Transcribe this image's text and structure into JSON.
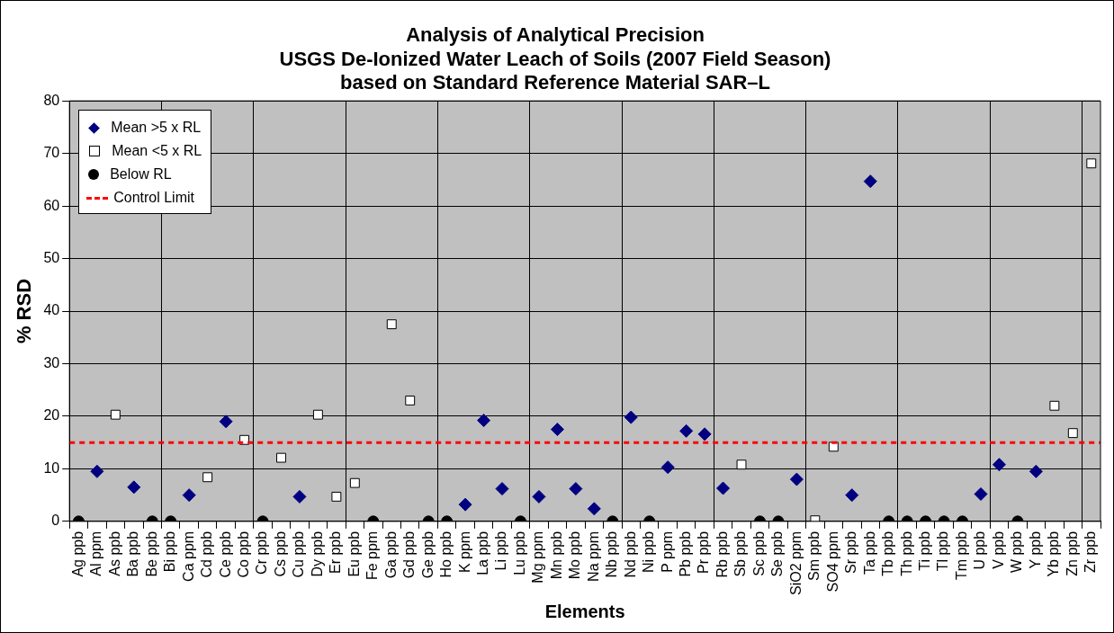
{
  "chart_data": {
    "type": "scatter",
    "title": "Analysis of Analytical Precision\nUSGS De-Ionized Water Leach of Soils (2007 Field Season)\nbased on Standard Reference Material SAR–L",
    "xlabel": "Elements",
    "ylabel": "% RSD",
    "categories": [
      "Ag ppb",
      "Al ppm",
      "As ppb",
      "Ba ppb",
      "Be ppb",
      "Bi ppb",
      "Ca ppm",
      "Cd ppb",
      "Ce ppb",
      "Co ppb",
      "Cr ppb",
      "Cs ppb",
      "Cu ppb",
      "Dy ppb",
      "Er ppb",
      "Eu ppb",
      "Fe ppm",
      "Ga ppb",
      "Gd ppb",
      "Ge ppb",
      "Ho ppb",
      "K ppm",
      "La ppb",
      "Li ppb",
      "Lu ppb",
      "Mg ppm",
      "Mn ppb",
      "Mo ppb",
      "Na ppm",
      "Nb ppb",
      "Nd ppb",
      "Ni ppb",
      "P ppm",
      "Pb ppb",
      "Pr ppb",
      "Rb ppb",
      "Sb ppb",
      "Sc ppb",
      "Se ppb",
      "SiO2 ppm",
      "Sm ppb",
      "SO4 ppm",
      "Sr ppb",
      "Ta ppb",
      "Tb ppb",
      "Th ppb",
      "Ti ppb",
      "Tl ppb",
      "Tm ppb",
      "U ppb",
      "V ppb",
      "W ppb",
      "Y ppb",
      "Yb ppb",
      "Zn ppb",
      "Zr ppb"
    ],
    "series": [
      {
        "name": "Mean >5 x RL",
        "color": "#000080",
        "marker": "diamond",
        "values": [
          null,
          9.5,
          null,
          6.5,
          null,
          null,
          5.0,
          null,
          19.0,
          null,
          null,
          null,
          4.7,
          null,
          null,
          null,
          null,
          null,
          null,
          null,
          null,
          3.2,
          19.2,
          6.2,
          null,
          4.7,
          17.5,
          6.2,
          2.4,
          null,
          19.8,
          null,
          10.3,
          17.2,
          16.6,
          6.3,
          null,
          null,
          null,
          8.0,
          null,
          null,
          5.0,
          64.7,
          null,
          null,
          null,
          null,
          null,
          5.2,
          10.8,
          null,
          9.5,
          null,
          null,
          null
        ]
      },
      {
        "name": "Mean <5 x RL",
        "color": "#ffffff",
        "marker": "square",
        "values": [
          null,
          null,
          20.3,
          null,
          null,
          null,
          null,
          8.4,
          null,
          15.5,
          null,
          12.1,
          null,
          20.3,
          4.7,
          7.3,
          null,
          37.5,
          23.0,
          null,
          null,
          null,
          null,
          null,
          null,
          null,
          null,
          null,
          null,
          null,
          null,
          null,
          null,
          null,
          null,
          null,
          10.8,
          null,
          null,
          null,
          0.2,
          14.2,
          null,
          null,
          null,
          null,
          null,
          null,
          null,
          null,
          null,
          null,
          null,
          22.0,
          16.8,
          68.1
        ]
      },
      {
        "name": "Below RL",
        "color": "#000000",
        "marker": "circle",
        "values": [
          0,
          null,
          null,
          null,
          0,
          0,
          null,
          null,
          null,
          null,
          0,
          null,
          null,
          null,
          null,
          null,
          0,
          null,
          null,
          0,
          0,
          null,
          null,
          null,
          0,
          null,
          null,
          null,
          null,
          0,
          null,
          0,
          null,
          null,
          null,
          null,
          null,
          0,
          0,
          null,
          null,
          null,
          null,
          null,
          0,
          0,
          0,
          0,
          0,
          null,
          null,
          0,
          null,
          null,
          null,
          null
        ]
      }
    ],
    "ref_lines": [
      {
        "axis": "y",
        "value": 15,
        "label": "Control Limit",
        "color": "#ff0000",
        "line_style": "dashed"
      }
    ],
    "ylim": [
      0,
      80
    ],
    "yticks": [
      0,
      10,
      20,
      30,
      40,
      50,
      60,
      70,
      80
    ],
    "grid": true,
    "legend": "top left"
  }
}
